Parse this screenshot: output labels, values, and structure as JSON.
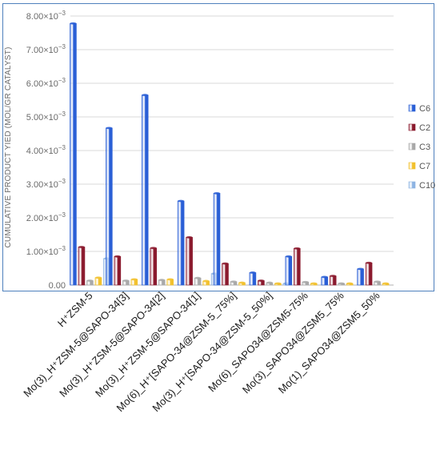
{
  "chart_data": {
    "type": "bar",
    "ylabel": "CUMULATIVE PRODUCT YIED (MOL/GR CATALYST)",
    "ylim": [
      0,
      0.008
    ],
    "y_ticks": [
      0,
      0.001,
      0.002,
      0.003,
      0.004,
      0.005,
      0.006,
      0.007,
      0.008
    ],
    "y_tick_labels": [
      {
        "mantissa": "0.00",
        "exp": ""
      },
      {
        "mantissa": "1.00×10",
        "exp": "−3"
      },
      {
        "mantissa": "2.00×10",
        "exp": "−3"
      },
      {
        "mantissa": "3.00×10",
        "exp": "−3"
      },
      {
        "mantissa": "4.00×10",
        "exp": "−3"
      },
      {
        "mantissa": "5.00×10",
        "exp": "−3"
      },
      {
        "mantissa": "6.00×10",
        "exp": "−3"
      },
      {
        "mantissa": "7.00×10",
        "exp": "−3"
      },
      {
        "mantissa": "8.00×10",
        "exp": "−3"
      }
    ],
    "categories": [
      "H⁺ZSM-5",
      "Mo(3)_H⁺ZSM-5@SAPO-34[3]",
      "Mo(3)_H⁺ZSM-5@SAPO-34[2]",
      "Mo(3)_H⁺ZSM-5@SAPO-34[1]",
      "Mo(6)_H⁺[SAPO-34@ZSM-5_75%]",
      "Mo(3)_H⁺[SAPO-34@ZSM-5_50%]",
      "Mo(6)_SAPO34@ZSM5-75%",
      "Mo(3)_SAPO34@ZSM5_75%",
      "Mo(1)_SAPO34@ZSM5_50%"
    ],
    "series": [
      {
        "name": "C6",
        "color": "#2a5fd6",
        "values": [
          0.00778,
          0.00467,
          0.00565,
          0.0025,
          0.00273,
          0.00037,
          0.00085,
          0.00024,
          0.00048
        ]
      },
      {
        "name": "C2",
        "color": "#8b1a2e",
        "values": [
          0.00113,
          0.00085,
          0.0011,
          0.00142,
          0.00064,
          0.00013,
          0.00109,
          0.00027,
          0.00066
        ]
      },
      {
        "name": "C3",
        "color": "#a9a9a9",
        "values": [
          0.00013,
          0.00013,
          0.00015,
          0.00021,
          0.0001,
          7e-05,
          9e-05,
          4e-05,
          0.0001
        ]
      },
      {
        "name": "C7",
        "color": "#f2c12e",
        "values": [
          0.00022,
          0.00017,
          0.00017,
          0.00012,
          7e-05,
          4e-05,
          4e-05,
          3e-05,
          2e-05
        ]
      },
      {
        "name": "C10",
        "color": "#8eb4e3",
        "values": [
          0.00079,
          0.0,
          0.0,
          0.00034,
          0.0,
          3e-05,
          0.0,
          0.0,
          0.0
        ]
      }
    ],
    "legend": "right",
    "grid": true
  }
}
